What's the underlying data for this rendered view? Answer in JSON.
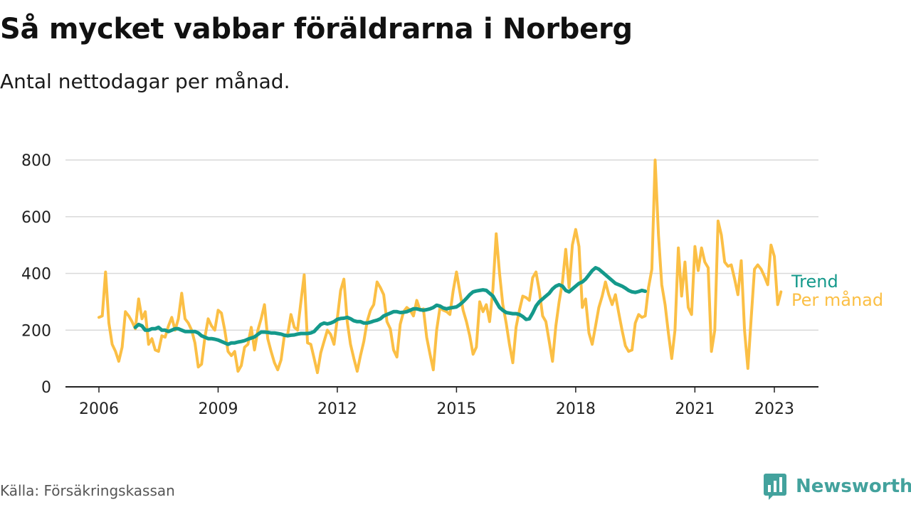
{
  "header": {
    "title": "Så mycket vabbar föräldrarna i Norberg",
    "subtitle": "Antal nettodagar per månad."
  },
  "footer": {
    "source": "Källa: Försäkringskassan",
    "brand": "Newsworthy",
    "brand_icon": "bar-chart-speech-bubble-icon"
  },
  "colors": {
    "monthly": "#fbbf45",
    "trend": "#14998b",
    "grid": "#d9d9d9",
    "axis": "#222222",
    "brand": "#43a29d"
  },
  "chart_data": {
    "type": "line",
    "xlabel": "",
    "ylabel": "",
    "ylim": [
      0,
      850
    ],
    "xlim": [
      2005.7,
      2024.5
    ],
    "yticks": [
      0,
      200,
      400,
      600,
      800
    ],
    "xticks": [
      2006,
      2009,
      2012,
      2015,
      2018,
      2021,
      2023
    ],
    "grid": true,
    "legend": "direct labels at right end of lines",
    "series": [
      {
        "name": "Per månad",
        "color": "#fbbf45",
        "start": 2006.0,
        "step": 0.0833333,
        "values": [
          245,
          250,
          405,
          225,
          150,
          125,
          90,
          140,
          265,
          250,
          230,
          205,
          310,
          240,
          265,
          150,
          170,
          130,
          125,
          180,
          175,
          215,
          245,
          200,
          240,
          330,
          240,
          225,
          200,
          155,
          70,
          80,
          175,
          240,
          215,
          200,
          270,
          260,
          200,
          125,
          110,
          125,
          55,
          75,
          140,
          150,
          210,
          130,
          200,
          240,
          290,
          170,
          125,
          85,
          60,
          95,
          180,
          185,
          255,
          210,
          200,
          300,
          395,
          155,
          150,
          100,
          50,
          120,
          160,
          200,
          185,
          150,
          240,
          340,
          380,
          230,
          150,
          100,
          55,
          110,
          160,
          230,
          270,
          290,
          370,
          350,
          325,
          230,
          205,
          130,
          105,
          220,
          265,
          280,
          270,
          250,
          305,
          270,
          275,
          175,
          115,
          60,
          200,
          280,
          270,
          265,
          255,
          340,
          405,
          335,
          270,
          230,
          180,
          115,
          140,
          300,
          265,
          290,
          230,
          345,
          540,
          400,
          290,
          225,
          150,
          85,
          210,
          270,
          320,
          315,
          305,
          385,
          405,
          340,
          250,
          230,
          160,
          90,
          215,
          300,
          370,
          485,
          350,
          500,
          555,
          495,
          280,
          310,
          190,
          150,
          215,
          280,
          320,
          370,
          325,
          290,
          325,
          260,
          200,
          145,
          125,
          130,
          225,
          255,
          245,
          250,
          350,
          415,
          800,
          535,
          360,
          290,
          190,
          100,
          200,
          490,
          320,
          440,
          280,
          255,
          495,
          410,
          490,
          440,
          420,
          125,
          200,
          585,
          535,
          440,
          425,
          430,
          380,
          325,
          445,
          200,
          65,
          240,
          415,
          430,
          415,
          390,
          360,
          500,
          460,
          290,
          335
        ]
      },
      {
        "name": "Trend",
        "color": "#14998b",
        "start": 2006.9167,
        "step": 0.0833333,
        "values": [
          210,
          220,
          215,
          200,
          200,
          205,
          205,
          210,
          200,
          200,
          195,
          200,
          205,
          205,
          200,
          195,
          195,
          195,
          195,
          190,
          180,
          175,
          170,
          170,
          168,
          165,
          160,
          155,
          150,
          155,
          155,
          158,
          160,
          163,
          168,
          172,
          176,
          185,
          193,
          193,
          192,
          190,
          190,
          188,
          186,
          182,
          180,
          182,
          183,
          186,
          188,
          188,
          188,
          190,
          195,
          208,
          220,
          225,
          222,
          225,
          230,
          238,
          241,
          242,
          245,
          240,
          233,
          230,
          230,
          225,
          225,
          228,
          232,
          235,
          240,
          250,
          255,
          260,
          265,
          265,
          262,
          263,
          265,
          270,
          275,
          275,
          272,
          270,
          272,
          275,
          280,
          288,
          285,
          278,
          275,
          278,
          280,
          282,
          290,
          300,
          312,
          325,
          335,
          338,
          340,
          342,
          340,
          330,
          320,
          300,
          280,
          270,
          262,
          260,
          258,
          258,
          255,
          248,
          238,
          240,
          260,
          285,
          300,
          310,
          320,
          330,
          345,
          355,
          360,
          355,
          340,
          335,
          345,
          355,
          365,
          370,
          380,
          395,
          410,
          420,
          415,
          405,
          395,
          385,
          375,
          365,
          360,
          355,
          348,
          340,
          335,
          333,
          336,
          340,
          337
        ]
      }
    ]
  }
}
